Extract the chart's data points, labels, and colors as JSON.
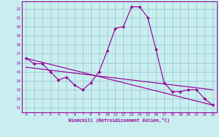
{
  "xlabel": "Windchill (Refroidissement éolien,°C)",
  "background_color": "#c8eef0",
  "grid_color": "#a0ccd0",
  "line_color": "#990099",
  "spine_color": "#990099",
  "xlim": [
    -0.5,
    23.5
  ],
  "ylim": [
    10.5,
    22.8
  ],
  "yticks": [
    11,
    12,
    13,
    14,
    15,
    16,
    17,
    18,
    19,
    20,
    21,
    22
  ],
  "xticks": [
    0,
    1,
    2,
    3,
    4,
    5,
    6,
    7,
    8,
    9,
    10,
    11,
    12,
    13,
    14,
    15,
    16,
    17,
    18,
    19,
    20,
    21,
    22,
    23
  ],
  "series1_x": [
    0,
    1,
    2,
    3,
    4,
    5,
    6,
    7,
    8,
    9,
    10,
    11,
    12,
    13,
    14,
    15,
    16,
    17,
    18,
    19,
    20,
    21,
    22,
    23
  ],
  "series1_y": [
    16.5,
    15.9,
    15.9,
    15.0,
    14.1,
    14.4,
    13.5,
    13.0,
    13.8,
    15.0,
    17.3,
    19.8,
    20.0,
    22.2,
    22.2,
    21.0,
    17.5,
    13.8,
    12.8,
    12.8,
    13.0,
    13.0,
    12.0,
    11.3
  ],
  "series2_x": [
    0,
    23
  ],
  "series2_y": [
    16.5,
    11.3
  ],
  "series3_x": [
    0,
    23
  ],
  "series3_y": [
    15.5,
    13.0
  ]
}
